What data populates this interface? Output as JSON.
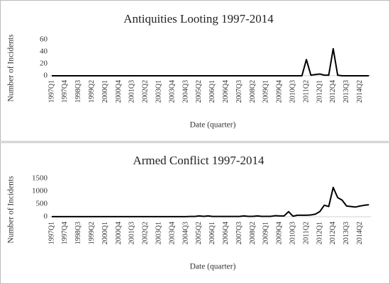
{
  "chart_data": [
    {
      "type": "line",
      "title": "Antiquities Looting 1997-2014",
      "x_label": "Date (quarter)",
      "y_label": "Number of Incidents",
      "categories": [
        "1997Q1",
        null,
        null,
        "1997Q4",
        null,
        null,
        "1998Q3",
        null,
        null,
        "1999Q2",
        null,
        null,
        "2000Q1",
        null,
        null,
        "2000Q4",
        null,
        null,
        "2001Q3",
        null,
        null,
        "2002Q2",
        null,
        null,
        "2003Q1",
        null,
        null,
        "2003Q4",
        null,
        null,
        "2004Q3",
        null,
        null,
        "2005Q2",
        null,
        null,
        "2006Q1",
        null,
        null,
        "2006Q4",
        null,
        null,
        "2007Q3",
        null,
        null,
        "2008Q2",
        null,
        null,
        "2009Q1",
        null,
        null,
        "2009Q4",
        null,
        null,
        "2010Q3",
        null,
        null,
        "2011Q2",
        null,
        null,
        "2012Q1",
        null,
        null,
        "2012Q4",
        null,
        null,
        "2013Q3",
        null,
        null,
        "2014Q2",
        null,
        null
      ],
      "values": [
        0,
        0,
        0,
        0,
        0,
        0,
        0,
        0,
        0,
        0,
        0,
        0,
        0,
        0,
        0,
        0,
        0,
        0,
        0,
        0,
        0,
        0,
        0,
        0,
        0,
        0,
        0,
        0,
        0,
        0,
        0,
        0,
        0,
        0,
        0,
        0,
        0,
        0,
        0,
        0,
        0,
        0,
        0,
        0,
        0,
        0,
        0,
        0,
        0,
        0,
        0,
        0,
        0,
        0,
        0,
        0,
        0,
        27,
        1,
        2,
        3,
        1,
        1,
        45,
        1,
        0,
        0,
        0,
        0,
        0,
        0,
        0
      ],
      "color": "#000000",
      "ylim": [
        0,
        60
      ],
      "yticks": [
        0,
        20,
        40,
        60
      ]
    },
    {
      "type": "line",
      "title": "Armed Conflict 1997-2014",
      "x_label": "Date (quarter)",
      "y_label": "Number of Incidents",
      "categories": [
        "1997Q1",
        null,
        null,
        "1997Q4",
        null,
        null,
        "1998Q3",
        null,
        null,
        "1999Q2",
        null,
        null,
        "2000Q1",
        null,
        null,
        "2000Q4",
        null,
        null,
        "2001Q3",
        null,
        null,
        "2002Q2",
        null,
        null,
        "2003Q1",
        null,
        null,
        "2003Q4",
        null,
        null,
        "2004Q3",
        null,
        null,
        "2005Q2",
        null,
        null,
        "2006Q1",
        null,
        null,
        "2006Q4",
        null,
        null,
        "2007Q3",
        null,
        null,
        "2008Q2",
        null,
        null,
        "2009Q1",
        null,
        null,
        "2009Q4",
        null,
        null,
        "2010Q3",
        null,
        null,
        "2011Q2",
        null,
        null,
        "2012Q1",
        null,
        null,
        "2012Q4",
        null,
        null,
        "2013Q3",
        null,
        null,
        "2014Q2",
        null,
        null
      ],
      "values": [
        5,
        5,
        5,
        5,
        5,
        5,
        5,
        5,
        5,
        5,
        5,
        5,
        5,
        5,
        5,
        5,
        5,
        5,
        5,
        5,
        5,
        5,
        5,
        5,
        5,
        5,
        5,
        5,
        5,
        5,
        5,
        10,
        10,
        30,
        15,
        30,
        10,
        10,
        10,
        10,
        10,
        10,
        10,
        30,
        15,
        15,
        30,
        15,
        15,
        15,
        40,
        30,
        30,
        200,
        20,
        60,
        60,
        60,
        70,
        100,
        200,
        450,
        400,
        1150,
        750,
        650,
        420,
        400,
        380,
        420,
        450,
        470
      ],
      "color": "#000000",
      "ylim": [
        0,
        1500
      ],
      "yticks": [
        0,
        500,
        1000,
        1500
      ]
    }
  ]
}
